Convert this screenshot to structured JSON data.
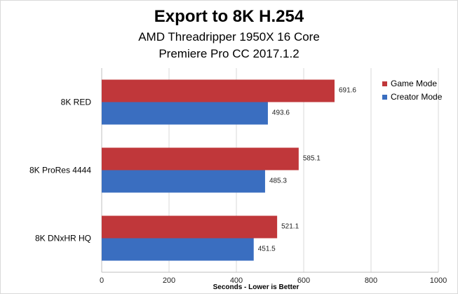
{
  "chart_data": {
    "type": "bar",
    "orientation": "horizontal",
    "title": "Export to 8K H.254",
    "subtitle": [
      "AMD Threadripper 1950X 16 Core",
      "Premiere Pro CC 2017.1.2"
    ],
    "categories": [
      "8K RED",
      "8K ProRes 4444",
      "8K DNxHR HQ"
    ],
    "series": [
      {
        "name": "Game Mode",
        "color": "#c0373a",
        "values": [
          691.6,
          585.1,
          521.1
        ]
      },
      {
        "name": "Creator Mode",
        "color": "#3a6ec0",
        "values": [
          493.6,
          485.3,
          451.5
        ]
      }
    ],
    "xlabel": "Seconds - Lower is Better",
    "ylabel": "",
    "xlim": [
      0,
      1000
    ],
    "xticks": [
      "0",
      "200",
      "400",
      "600",
      "800",
      "1000"
    ],
    "legend": "top-right",
    "grid": true
  }
}
